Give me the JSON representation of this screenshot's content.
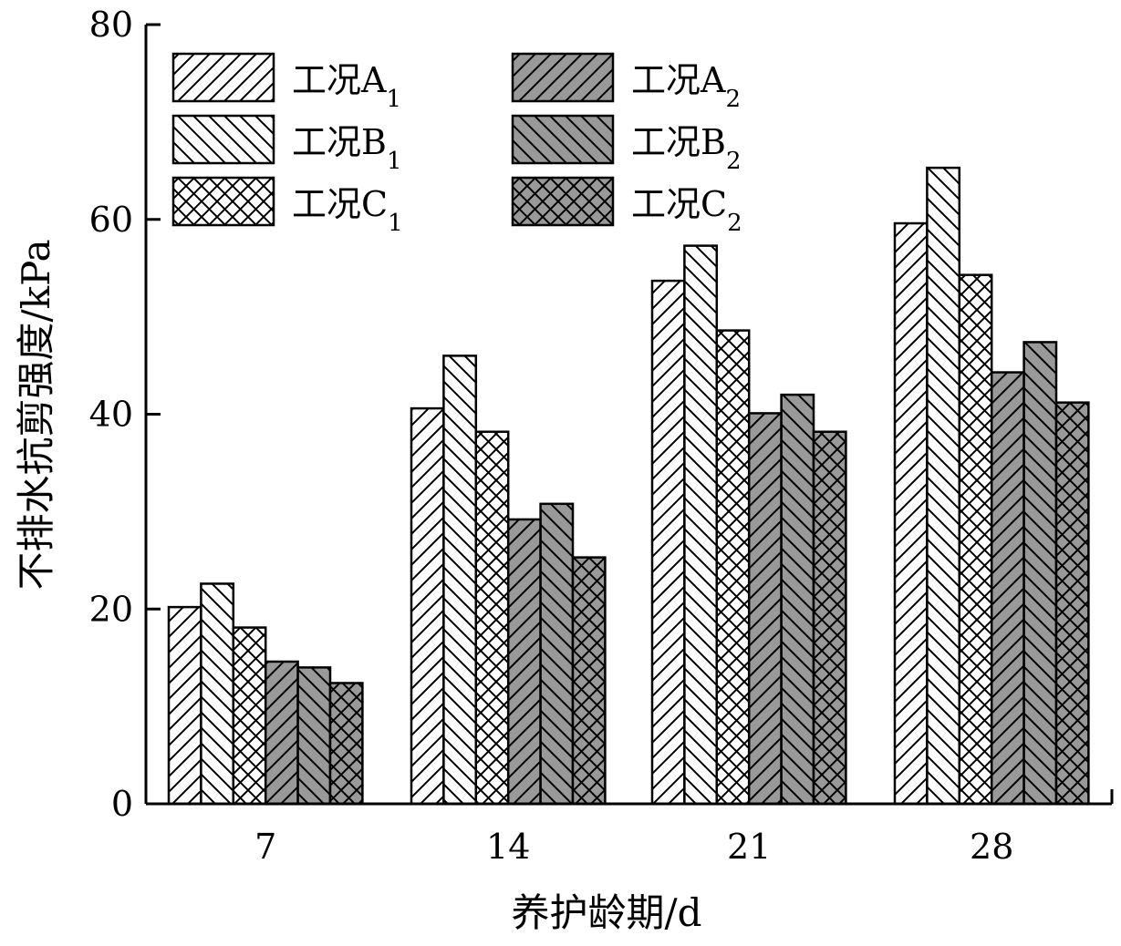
{
  "chart_data": {
    "type": "bar",
    "title": "",
    "xlabel": "养护龄期/d",
    "ylabel": "不排水抗剪强度/kPa",
    "categories": [
      "7",
      "14",
      "21",
      "28"
    ],
    "ylim": [
      0,
      80
    ],
    "yticks": [
      "0",
      "20",
      "40",
      "60",
      "80"
    ],
    "grid": false,
    "legend_placement": "top-left, two columns",
    "series": [
      {
        "name_main": "工况A",
        "name_sub": "1",
        "fill": "#ffffff",
        "hatch": "forward",
        "values": [
          20.2,
          40.6,
          53.7,
          59.6
        ]
      },
      {
        "name_main": "工况B",
        "name_sub": "1",
        "fill": "#ffffff",
        "hatch": "backward",
        "values": [
          22.6,
          46.0,
          57.3,
          65.3
        ]
      },
      {
        "name_main": "工况C",
        "name_sub": "1",
        "fill": "#ffffff",
        "hatch": "cross",
        "values": [
          18.1,
          38.2,
          48.6,
          54.3
        ]
      },
      {
        "name_main": "工况A",
        "name_sub": "2",
        "fill": "#999999",
        "hatch": "forward",
        "values": [
          14.6,
          29.2,
          40.1,
          44.3
        ]
      },
      {
        "name_main": "工况B",
        "name_sub": "2",
        "fill": "#999999",
        "hatch": "backward",
        "values": [
          14.0,
          30.8,
          42.0,
          47.4
        ]
      },
      {
        "name_main": "工况C",
        "name_sub": "2",
        "fill": "#999999",
        "hatch": "cross",
        "values": [
          12.4,
          25.3,
          38.2,
          41.2
        ]
      }
    ]
  }
}
